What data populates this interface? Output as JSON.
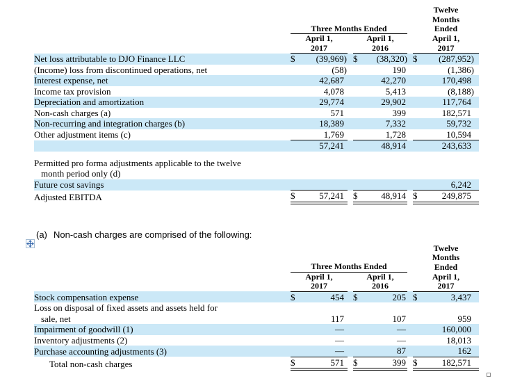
{
  "colors": {
    "row_shade": "#cbe8f7",
    "border": "#000000",
    "handle_arrow": "#3a6aad"
  },
  "currency": "$",
  "note": {
    "marker": "(a)",
    "text": "Non-cash charges are comprised of the following:"
  },
  "icons": {
    "move_handle": "move-handle-icon",
    "resize_handle": "resize-handle-icon"
  },
  "header_template": {
    "three_months": "Three Months Ended",
    "twelve_months": [
      "Twelve",
      "Months",
      "Ended"
    ],
    "columns": [
      [
        "April 1,",
        "2017"
      ],
      [
        "April 1,",
        "2016"
      ],
      [
        "April 1,",
        "2017"
      ]
    ]
  },
  "tables": [
    {
      "name": "adjusted-ebitda-reconciliation",
      "rows": [
        {
          "label": "Net loss attributable to DJO Finance LLC",
          "shaded": true,
          "dollar": true,
          "values": [
            "(39,969)",
            "(38,320)",
            "(287,952)"
          ]
        },
        {
          "label": "(Income) loss from discontinued operations, net",
          "values": [
            "(58)",
            "190",
            "(1,386)"
          ]
        },
        {
          "label": "Interest expense, net",
          "shaded": true,
          "values": [
            "42,687",
            "42,270",
            "170,498"
          ]
        },
        {
          "label": "Income tax provision",
          "values": [
            "4,078",
            "5,413",
            "(8,188)"
          ]
        },
        {
          "label": "Depreciation and amortization",
          "shaded": true,
          "values": [
            "29,774",
            "29,902",
            "117,764"
          ]
        },
        {
          "label": "Non-cash charges (a)",
          "values": [
            "571",
            "399",
            "182,571"
          ]
        },
        {
          "label": "Non-recurring and integration charges (b)",
          "shaded": true,
          "values": [
            "18,389",
            "7,332",
            "59,732"
          ]
        },
        {
          "label": "Other adjustment items (c)",
          "ub": true,
          "values": [
            "1,769",
            "1,728",
            "10,594"
          ]
        },
        {
          "label": "",
          "shaded": true,
          "values": [
            "57,241",
            "48,914",
            "243,633"
          ]
        },
        {
          "spacer": true
        },
        {
          "label": "Permitted pro forma adjustments applicable to the twelve",
          "label2": "month period only (d)",
          "values": [
            "",
            "",
            ""
          ]
        },
        {
          "label": "Future cost savings",
          "shaded": true,
          "values": [
            "",
            "",
            "6,242"
          ]
        },
        {
          "label": "Adjusted EBITDA",
          "dollar": true,
          "tb": true,
          "db": true,
          "values": [
            "57,241",
            "48,914",
            "249,875"
          ]
        }
      ]
    },
    {
      "name": "non-cash-charges-detail",
      "rows": [
        {
          "label": "Stock compensation expense",
          "shaded": true,
          "dollar": true,
          "values": [
            "454",
            "205",
            "3,437"
          ]
        },
        {
          "label": "Loss on disposal of fixed assets and assets held for",
          "label2": "sale, net",
          "values": [
            "117",
            "107",
            "959"
          ]
        },
        {
          "label": "Impairment of goodwill (1)",
          "shaded": true,
          "values": [
            "—",
            "—",
            "160,000"
          ]
        },
        {
          "label": "Inventory adjustments (2)",
          "values": [
            "—",
            "—",
            "18,013"
          ]
        },
        {
          "label": "Purchase accounting adjustments (3)",
          "shaded": true,
          "ub": true,
          "values": [
            "—",
            "87",
            "162"
          ]
        },
        {
          "label": "Total non-cash charges",
          "indent": true,
          "dollar": true,
          "db": true,
          "values": [
            "571",
            "399",
            "182,571"
          ]
        }
      ]
    }
  ]
}
